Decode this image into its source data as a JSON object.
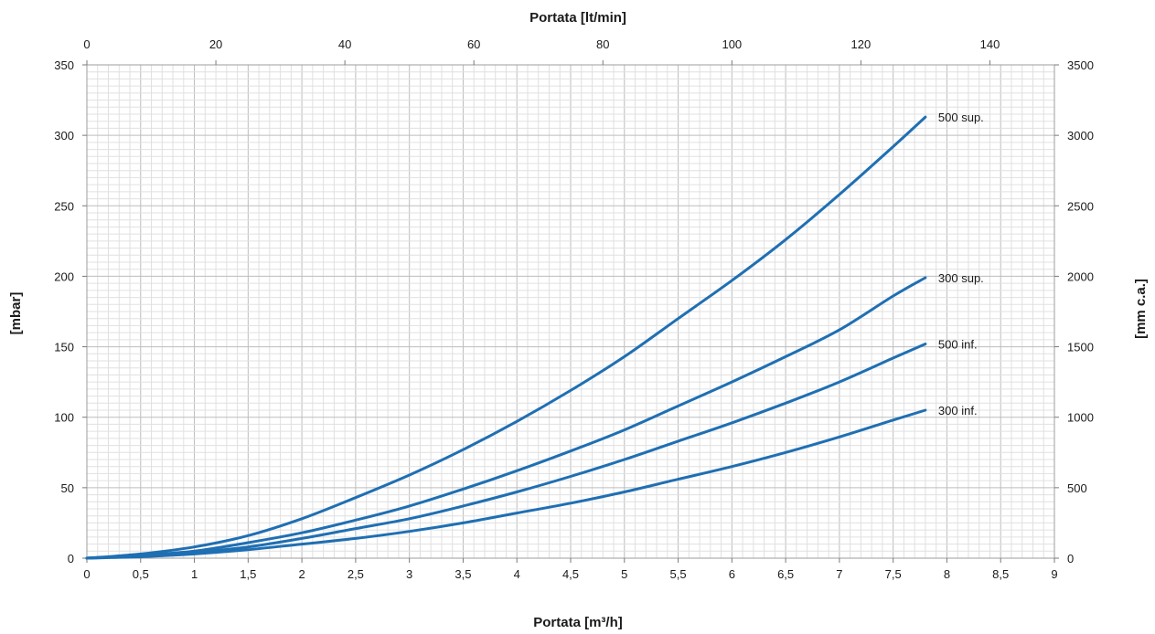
{
  "chart_data": {
    "type": "line",
    "title": "",
    "xlabel": "Portata [m³/h]",
    "ylabel": "[mbar]",
    "x2label": "Portata [lt/min]",
    "y2label": "[mm c.a.]",
    "xlim": [
      0,
      9
    ],
    "ylim": [
      0,
      350
    ],
    "x2lim": [
      0,
      150
    ],
    "y2lim": [
      0,
      3500
    ],
    "x_ticks": [
      "0",
      "0,5",
      "1",
      "1,5",
      "2",
      "2,5",
      "3",
      "3,5",
      "4",
      "4,5",
      "5",
      "5,5",
      "6",
      "6,5",
      "7",
      "7,5",
      "8",
      "8,5",
      "9"
    ],
    "y_ticks": [
      "0",
      "50",
      "100",
      "150",
      "200",
      "250",
      "300",
      "350"
    ],
    "x2_ticks": [
      "0",
      "20",
      "40",
      "60",
      "80",
      "100",
      "120",
      "140"
    ],
    "y2_ticks": [
      "0",
      "500",
      "1000",
      "1500",
      "2000",
      "2500",
      "3000",
      "3500"
    ],
    "grid": true,
    "legend": "none",
    "line_color": "#1f6fb3",
    "x": [
      0,
      0.5,
      1,
      1.5,
      2,
      2.5,
      3,
      3.5,
      4,
      4.5,
      5,
      5.5,
      6,
      6.5,
      7,
      7.5,
      7.8
    ],
    "series": [
      {
        "name": "500 sup.",
        "values": [
          0,
          3,
          8,
          16,
          28,
          43,
          59,
          77,
          97,
          119,
          143,
          170,
          197,
          226,
          258,
          292,
          313
        ]
      },
      {
        "name": "300 sup.",
        "values": [
          0,
          2,
          5,
          11,
          18,
          27,
          37,
          49,
          62,
          76,
          91,
          108,
          125,
          143,
          162,
          186,
          199
        ]
      },
      {
        "name": "500 inf.",
        "values": [
          0,
          1.5,
          4,
          8,
          14,
          21,
          28,
          37,
          47,
          58,
          70,
          83,
          96,
          110,
          125,
          142,
          152
        ]
      },
      {
        "name": "300 inf.",
        "values": [
          0,
          1,
          3,
          6,
          10,
          14,
          19,
          25,
          32,
          39,
          47,
          56,
          65,
          75,
          86,
          98,
          105
        ]
      }
    ]
  }
}
